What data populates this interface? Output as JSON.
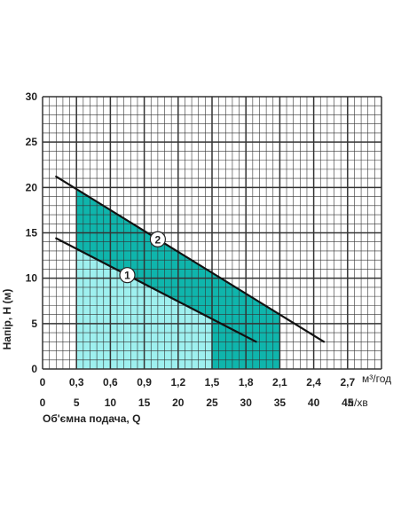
{
  "chart_data": {
    "type": "line",
    "title": "",
    "ylabel": "Напір, Н (м)",
    "xlabel": "Об'ємна подача, Q",
    "x_unit_top": "м³/год",
    "x_unit_bottom": "л/хв",
    "xlim": [
      0,
      50
    ],
    "ylim": [
      0,
      30
    ],
    "y_ticks": [
      "0",
      "5",
      "10",
      "15",
      "20",
      "25",
      "30"
    ],
    "x_ticks_top": [
      "0",
      "0,3",
      "0,6",
      "0,9",
      "1,2",
      "1,5",
      "1,8",
      "2,1",
      "2,4",
      "2,7"
    ],
    "x_ticks_bottom": [
      "0",
      "5",
      "10",
      "15",
      "20",
      "25",
      "30",
      "35",
      "40",
      "45"
    ],
    "grid": true,
    "series": [
      {
        "name": "1",
        "x": [
          2,
          31.5
        ],
        "y": [
          14.4,
          3.0
        ],
        "color": "#111111",
        "band": {
          "x": [
            5,
            25
          ],
          "fill": "#9ef0ef"
        }
      },
      {
        "name": "2",
        "x": [
          2,
          41.5
        ],
        "y": [
          21.2,
          3.0
        ],
        "color": "#111111",
        "band": {
          "x": [
            5,
            35
          ],
          "fill": "#0fb5ac"
        }
      }
    ]
  }
}
